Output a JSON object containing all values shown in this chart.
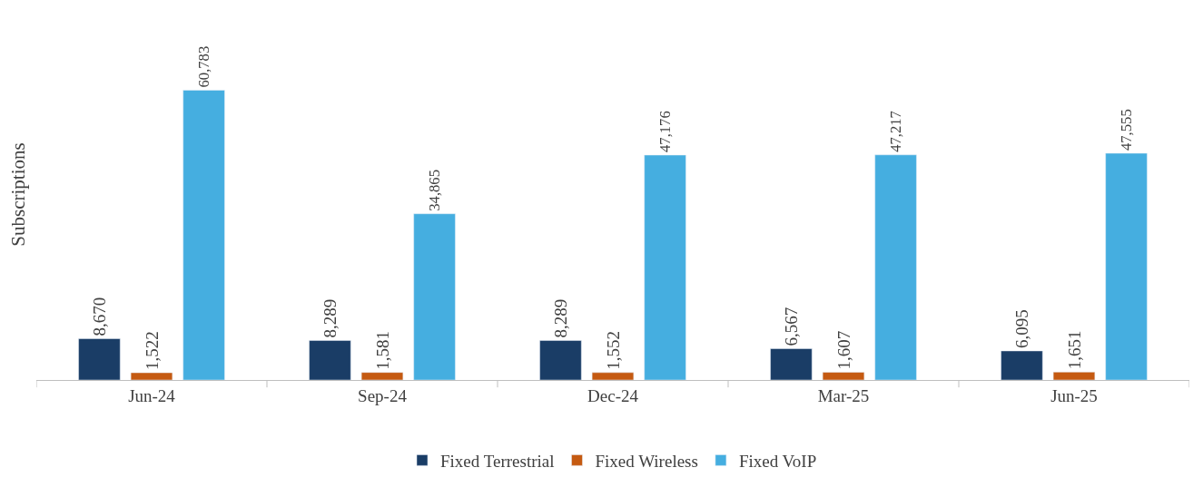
{
  "chart_data": {
    "type": "bar",
    "ylabel": "Subscriptions",
    "categories": [
      "Jun-24",
      "Sep-24",
      "Dec-24",
      "Mar-25",
      "Jun-25"
    ],
    "series": [
      {
        "name": "Fixed Terrestrial",
        "color": "#1a3d66",
        "values": [
          8670,
          8289,
          8289,
          6567,
          6095
        ],
        "value_labels": [
          "8,670",
          "8,289",
          "8,289",
          "6,567",
          "6,095"
        ]
      },
      {
        "name": "Fixed Wireless",
        "color": "#c55a11",
        "values": [
          1522,
          1581,
          1552,
          1607,
          1651
        ],
        "value_labels": [
          "1,522",
          "1,581",
          "1,552",
          "1,607",
          "1,651"
        ]
      },
      {
        "name": "Fixed VoIP",
        "color": "#45aee0",
        "values": [
          60783,
          34865,
          47176,
          47217,
          47555
        ],
        "value_labels": [
          "60,783",
          "34,865",
          "47,176",
          "47,217",
          "47,555"
        ]
      }
    ],
    "legend": "bottom"
  }
}
